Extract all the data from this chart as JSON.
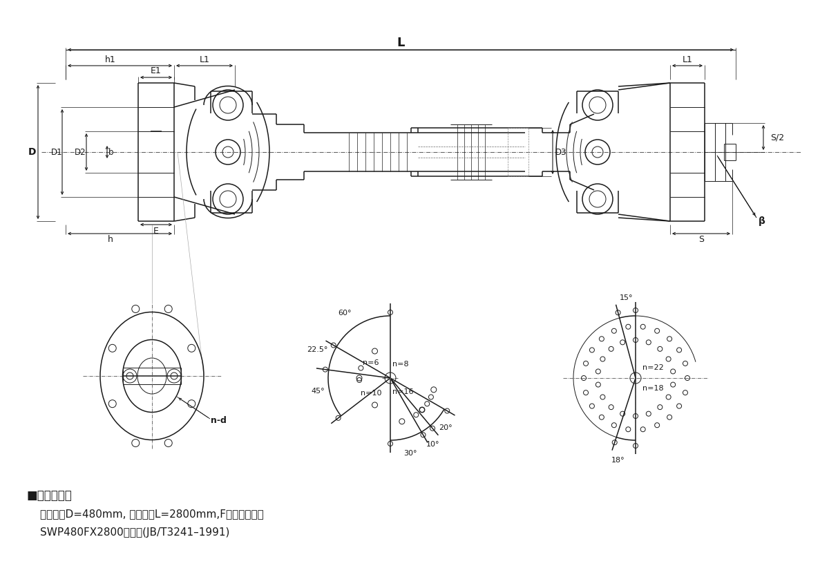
{
  "bg_color": "#ffffff",
  "line_color": "#1a1a1a",
  "label_section": "■标记示例：",
  "label_line1": "回转直径D=480mm, 安装长度L=2800mm,F型万向联轴器",
  "label_line2": "SWP480FX2800联轴器(JB/T3241–1991)",
  "L": "L",
  "L1": "L1",
  "h1": "h1",
  "E1": "E1",
  "D": "D",
  "D1": "D1",
  "D2": "D2",
  "b": "b",
  "h": "h",
  "E": "E",
  "D3": "D3",
  "S2": "S/2",
  "S": "S",
  "beta": "β",
  "n_d": "n-d",
  "ang60": "60°",
  "ang225": "22.5°",
  "ang45": "45°",
  "ang30": "30°",
  "ang10": "10°",
  "ang20": "20°",
  "ang15": "15°",
  "ang18": "18°",
  "n6": "n=6",
  "n8": "n=8",
  "n10": "n=10",
  "n16": "n=16",
  "n22": "n=22",
  "n18": "n=18"
}
